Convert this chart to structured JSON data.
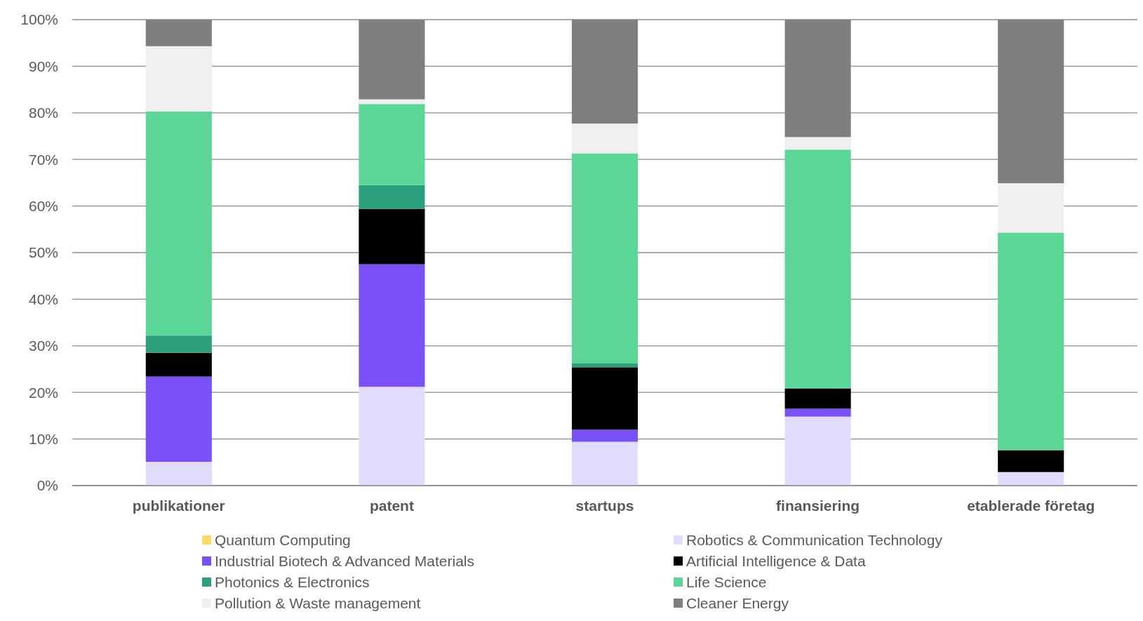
{
  "chart_data": {
    "type": "bar",
    "stacked": true,
    "categories": [
      "publikationer",
      "patent",
      "startups",
      "finansiering",
      "etablerade företag"
    ],
    "series": [
      {
        "name": "Quantum Computing",
        "color": "#ffd966",
        "values": [
          0,
          0,
          0,
          0,
          0
        ]
      },
      {
        "name": "Robotics & Communication Technology",
        "color": "#e1dcfe",
        "values": [
          5.1,
          21.2,
          9.4,
          14.8,
          2.9
        ]
      },
      {
        "name": "Industrial Biotech & Advanced Materials",
        "color": "#7a50f8",
        "values": [
          18.3,
          26.3,
          2.6,
          1.7,
          0
        ]
      },
      {
        "name": "Artificial Intelligence & Data",
        "color": "#000000",
        "values": [
          5.1,
          11.9,
          13.4,
          4.3,
          4.7
        ]
      },
      {
        "name": "Photonics & Electronics",
        "color": "#2ca07d",
        "values": [
          3.7,
          5.1,
          0.8,
          0.2,
          0
        ]
      },
      {
        "name": "Life Science",
        "color": "#5ad796",
        "values": [
          48.1,
          17.4,
          45.1,
          51.1,
          46.7
        ]
      },
      {
        "name": "Pollution & Waste management",
        "color": "#efefef",
        "values": [
          14.0,
          1.0,
          6.4,
          2.7,
          10.6
        ]
      },
      {
        "name": "Cleaner Energy",
        "color": "#7f7f7f",
        "values": [
          5.7,
          17.1,
          22.3,
          25.2,
          35.1
        ]
      }
    ],
    "ylim": [
      0,
      100
    ],
    "yticks": [
      {
        "value": 0,
        "label": "0%"
      },
      {
        "value": 10,
        "label": "10%"
      },
      {
        "value": 20,
        "label": "20%"
      },
      {
        "value": 30,
        "label": "30%"
      },
      {
        "value": 40,
        "label": "40%"
      },
      {
        "value": 50,
        "label": "50%"
      },
      {
        "value": 60,
        "label": "60%"
      },
      {
        "value": 70,
        "label": "70%"
      },
      {
        "value": 80,
        "label": "80%"
      },
      {
        "value": 90,
        "label": "90%"
      },
      {
        "value": 100,
        "label": "100%"
      }
    ],
    "grid": "y",
    "legend": "bottom"
  }
}
